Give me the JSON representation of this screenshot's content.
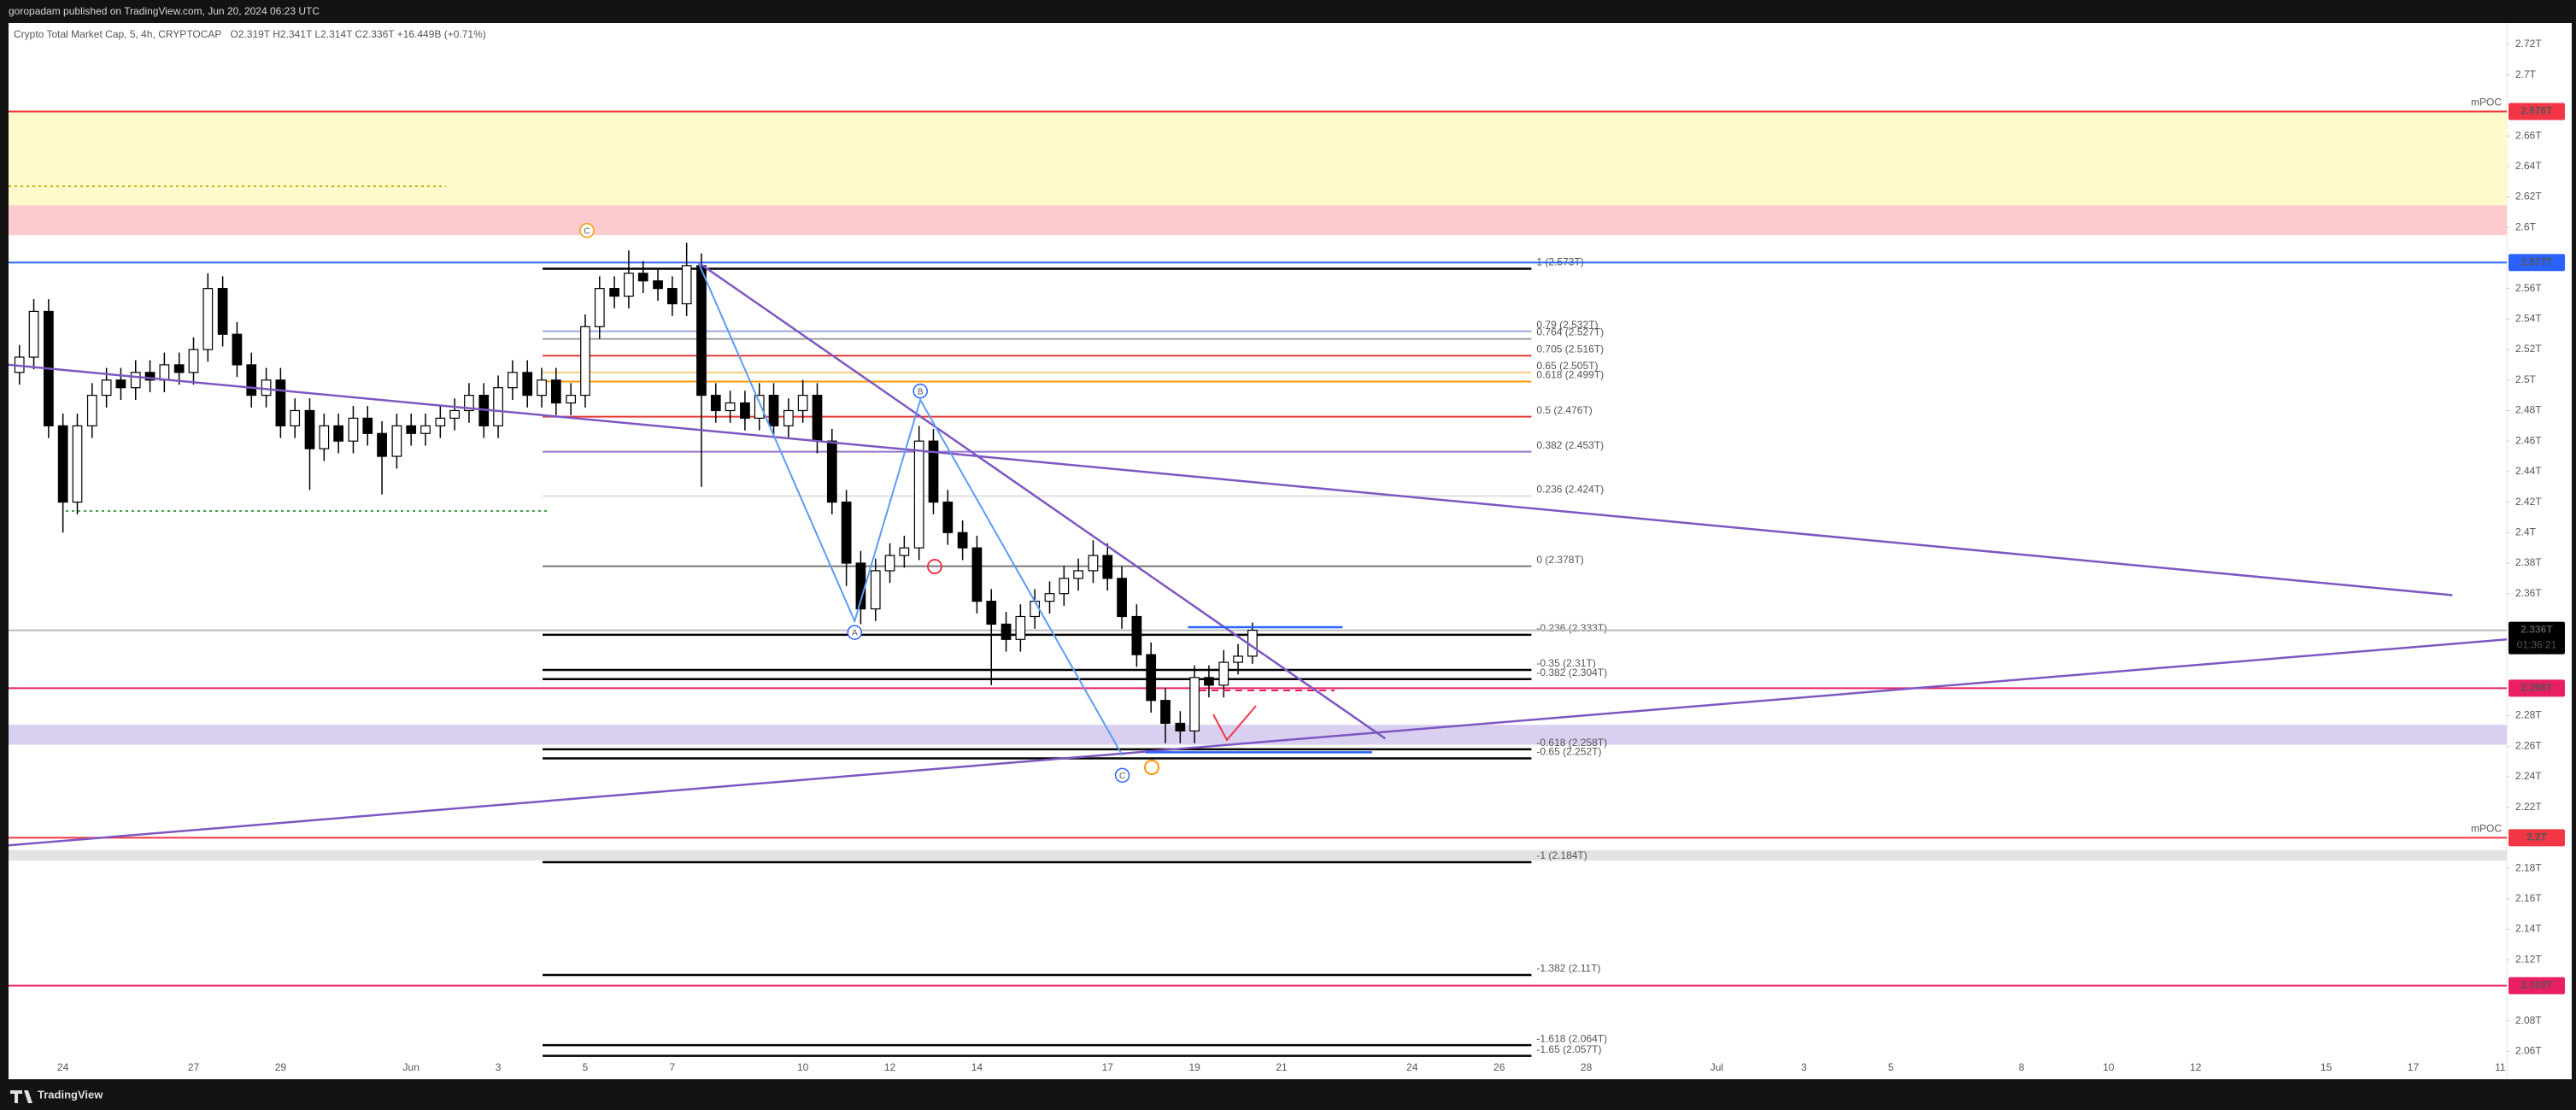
{
  "header": {
    "publisher": "goropadam published on TradingView.com, Jun 20, 2024 06:23 UTC"
  },
  "footer": {
    "brand": "TradingView"
  },
  "chart_data": {
    "type": "candlestick",
    "title": "Crypto Total Market Cap, 5, 4h, CRYPTOCAP",
    "subtitle": "O2.319T H2.341T L2.314T C2.336T +16.449B (+0.71%)",
    "x": [
      -1,
      -0.67,
      -0.33,
      0,
      0.33,
      0.67,
      1,
      1.33,
      1.67,
      2,
      2.33,
      2.67,
      3,
      3.33,
      3.67,
      4,
      4.33,
      4.67,
      5,
      5.33,
      5.67,
      6,
      6.33,
      6.67,
      7,
      7.33,
      7.67,
      8,
      8.33,
      8.67,
      9,
      9.33,
      9.67,
      10,
      10.33,
      10.67,
      11,
      11.33,
      11.67,
      12,
      12.33,
      12.67,
      13,
      13.33,
      13.67,
      14,
      14.33,
      14.67,
      15,
      15.33,
      15.67,
      16,
      16.33,
      16.67,
      17,
      17.33,
      17.67,
      18,
      18.33,
      18.67,
      19,
      19.33,
      19.67,
      20,
      20.33,
      20.67,
      21,
      21.33,
      21.67,
      22,
      22.33,
      22.67,
      23,
      23.33,
      23.67,
      24,
      24.33,
      24.67,
      25,
      25.33,
      25.67,
      26,
      26.33,
      26.67,
      27,
      27.33
    ],
    "open": [
      2.505,
      2.515,
      2.545,
      2.47,
      2.42,
      2.47,
      2.49,
      2.5,
      2.495,
      2.505,
      2.5,
      2.51,
      2.505,
      2.52,
      2.56,
      2.53,
      2.51,
      2.49,
      2.5,
      2.47,
      2.48,
      2.455,
      2.47,
      2.46,
      2.475,
      2.465,
      2.45,
      2.47,
      2.465,
      2.47,
      2.475,
      2.48,
      2.49,
      2.47,
      2.495,
      2.505,
      2.49,
      2.5,
      2.485,
      2.49,
      2.535,
      2.56,
      2.555,
      2.57,
      2.565,
      2.56,
      2.55,
      2.575,
      2.49,
      2.48,
      2.485,
      2.475,
      2.49,
      2.47,
      2.48,
      2.49,
      2.46,
      2.42,
      2.38,
      2.35,
      2.375,
      2.385,
      2.39,
      2.46,
      2.42,
      2.4,
      2.39,
      2.355,
      2.34,
      2.33,
      2.345,
      2.355,
      2.36,
      2.37,
      2.375,
      2.385,
      2.37,
      2.345,
      2.32,
      2.29,
      2.275,
      2.27,
      2.305,
      2.3,
      2.315,
      2.319
    ],
    "high": [
      2.523,
      2.553,
      2.553,
      2.478,
      2.478,
      2.498,
      2.508,
      2.508,
      2.513,
      2.513,
      2.518,
      2.518,
      2.528,
      2.57,
      2.568,
      2.538,
      2.518,
      2.508,
      2.508,
      2.488,
      2.488,
      2.478,
      2.478,
      2.483,
      2.483,
      2.473,
      2.478,
      2.478,
      2.478,
      2.483,
      2.488,
      2.498,
      2.498,
      2.503,
      2.513,
      2.513,
      2.508,
      2.508,
      2.498,
      2.543,
      2.568,
      2.568,
      2.585,
      2.578,
      2.573,
      2.568,
      2.59,
      2.583,
      2.498,
      2.493,
      2.493,
      2.498,
      2.498,
      2.488,
      2.5,
      2.498,
      2.468,
      2.428,
      2.388,
      2.383,
      2.393,
      2.398,
      2.47,
      2.468,
      2.428,
      2.408,
      2.398,
      2.363,
      2.348,
      2.353,
      2.363,
      2.368,
      2.378,
      2.383,
      2.395,
      2.393,
      2.378,
      2.353,
      2.328,
      2.298,
      2.283,
      2.313,
      2.313,
      2.323,
      2.327,
      2.341
    ],
    "low": [
      2.497,
      2.507,
      2.462,
      2.4,
      2.412,
      2.462,
      2.482,
      2.487,
      2.487,
      2.492,
      2.492,
      2.497,
      2.497,
      2.512,
      2.522,
      2.502,
      2.482,
      2.482,
      2.462,
      2.462,
      2.428,
      2.447,
      2.452,
      2.452,
      2.457,
      2.425,
      2.442,
      2.457,
      2.457,
      2.462,
      2.467,
      2.472,
      2.462,
      2.462,
      2.487,
      2.482,
      2.482,
      2.477,
      2.477,
      2.482,
      2.527,
      2.547,
      2.547,
      2.557,
      2.552,
      2.542,
      2.542,
      2.43,
      2.472,
      2.472,
      2.467,
      2.467,
      2.462,
      2.462,
      2.472,
      2.452,
      2.412,
      2.365,
      2.34,
      2.342,
      2.367,
      2.377,
      2.382,
      2.412,
      2.392,
      2.382,
      2.347,
      2.3,
      2.322,
      2.322,
      2.337,
      2.347,
      2.352,
      2.362,
      2.367,
      2.362,
      2.337,
      2.312,
      2.282,
      2.262,
      2.262,
      2.262,
      2.292,
      2.292,
      2.307,
      2.314
    ],
    "close": [
      2.515,
      2.545,
      2.47,
      2.42,
      2.47,
      2.49,
      2.5,
      2.495,
      2.505,
      2.5,
      2.51,
      2.505,
      2.52,
      2.56,
      2.53,
      2.51,
      2.49,
      2.5,
      2.47,
      2.48,
      2.455,
      2.47,
      2.46,
      2.475,
      2.465,
      2.45,
      2.47,
      2.465,
      2.47,
      2.475,
      2.48,
      2.49,
      2.47,
      2.495,
      2.505,
      2.49,
      2.5,
      2.485,
      2.49,
      2.535,
      2.56,
      2.555,
      2.57,
      2.565,
      2.56,
      2.55,
      2.575,
      2.49,
      2.48,
      2.485,
      2.475,
      2.49,
      2.47,
      2.48,
      2.49,
      2.46,
      2.42,
      2.38,
      2.35,
      2.375,
      2.385,
      2.39,
      2.46,
      2.42,
      2.4,
      2.39,
      2.355,
      2.34,
      2.33,
      2.345,
      2.355,
      2.36,
      2.37,
      2.375,
      2.385,
      2.37,
      2.345,
      2.32,
      2.29,
      2.275,
      2.27,
      2.305,
      2.3,
      2.315,
      2.319,
      2.336
    ],
    "up_color": "#ffffff",
    "down_color": "#000000",
    "xlim": [
      -1.25,
      56.15
    ],
    "xticks": [
      {
        "value": 0,
        "label": "24"
      },
      {
        "value": 3,
        "label": "27"
      },
      {
        "value": 5,
        "label": "29"
      },
      {
        "value": 8,
        "label": "Jun"
      },
      {
        "value": 10,
        "label": "3"
      },
      {
        "value": 12,
        "label": "5"
      },
      {
        "value": 14,
        "label": "7"
      },
      {
        "value": 17,
        "label": "10"
      },
      {
        "value": 19,
        "label": "12"
      },
      {
        "value": 21,
        "label": "14"
      },
      {
        "value": 24,
        "label": "17"
      },
      {
        "value": 26,
        "label": "19"
      },
      {
        "value": 28,
        "label": "21"
      },
      {
        "value": 31,
        "label": "24"
      },
      {
        "value": 33,
        "label": "26"
      },
      {
        "value": 35,
        "label": "28"
      },
      {
        "value": 38,
        "label": "Jul"
      },
      {
        "value": 40,
        "label": "3"
      },
      {
        "value": 42,
        "label": "5"
      },
      {
        "value": 45,
        "label": "8"
      },
      {
        "value": 47,
        "label": "10"
      },
      {
        "value": 49,
        "label": "12"
      },
      {
        "value": 52,
        "label": "15"
      },
      {
        "value": 54,
        "label": "17"
      },
      {
        "value": 56,
        "label": "11"
      }
    ],
    "ylim": [
      2.0417,
      2.734
    ],
    "yticks": [
      {
        "value": 2.72,
        "label": "2.72T"
      },
      {
        "value": 2.7,
        "label": "2.7T"
      },
      {
        "value": 2.66,
        "label": "2.66T"
      },
      {
        "value": 2.64,
        "label": "2.64T"
      },
      {
        "value": 2.62,
        "label": "2.62T"
      },
      {
        "value": 2.6,
        "label": "2.6T"
      },
      {
        "value": 2.56,
        "label": "2.56T"
      },
      {
        "value": 2.54,
        "label": "2.54T"
      },
      {
        "value": 2.52,
        "label": "2.52T"
      },
      {
        "value": 2.5,
        "label": "2.5T"
      },
      {
        "value": 2.48,
        "label": "2.48T"
      },
      {
        "value": 2.46,
        "label": "2.46T"
      },
      {
        "value": 2.44,
        "label": "2.44T"
      },
      {
        "value": 2.42,
        "label": "2.42T"
      },
      {
        "value": 2.4,
        "label": "2.4T"
      },
      {
        "value": 2.38,
        "label": "2.38T"
      },
      {
        "value": 2.36,
        "label": "2.36T"
      },
      {
        "value": 2.28,
        "label": "2.28T"
      },
      {
        "value": 2.26,
        "label": "2.26T"
      },
      {
        "value": 2.24,
        "label": "2.24T"
      },
      {
        "value": 2.22,
        "label": "2.22T"
      },
      {
        "value": 2.18,
        "label": "2.18T"
      },
      {
        "value": 2.16,
        "label": "2.16T"
      },
      {
        "value": 2.14,
        "label": "2.14T"
      },
      {
        "value": 2.12,
        "label": "2.12T"
      },
      {
        "value": 2.08,
        "label": "2.08T"
      },
      {
        "value": 2.06,
        "label": "2.06T"
      }
    ],
    "grid": false,
    "zones": [
      {
        "from": 2.6145,
        "to": 2.677,
        "color": "#fff9cc"
      },
      {
        "from": 2.595,
        "to": 2.6145,
        "color": "#fccbcd"
      },
      {
        "from": 2.261,
        "to": 2.274,
        "color": "#d9cff0"
      },
      {
        "from": 2.185,
        "to": 2.192,
        "color": "#e3e3e3"
      }
    ],
    "price_labels": [
      {
        "value": 2.676,
        "label": "2.676T",
        "color": "#f23645"
      },
      {
        "value": 2.577,
        "label": "2.577T",
        "color": "#2962ff"
      },
      {
        "value": 2.336,
        "label": "2.336T",
        "color": "#000000",
        "countdown": "01:36:21"
      },
      {
        "value": 2.298,
        "label": "2.298T",
        "color": "#e91e63"
      },
      {
        "value": 2.2,
        "label": "2.2T",
        "color": "#f23645"
      },
      {
        "value": 2.103,
        "label": "2.103T",
        "color": "#e91e63"
      }
    ],
    "mpoc": [
      {
        "label": "mPOC",
        "value": 2.676
      },
      {
        "label": "mPOC",
        "value": 2.2
      }
    ],
    "fib": {
      "x": [
        11.02,
        33.74
      ],
      "levels": [
        {
          "label": "1 (2.573T)",
          "value": 2.573,
          "color": "#000000"
        },
        {
          "label": "0.79 (2.532T)",
          "value": 2.532,
          "color": "#9fa8da"
        },
        {
          "label": "0.764 (2.527T)",
          "value": 2.527,
          "color": "#9e9e9e"
        },
        {
          "label": "0.705 (2.516T)",
          "value": 2.516,
          "color": "#e53935"
        },
        {
          "label": "0.65 (2.505T)",
          "value": 2.505,
          "color": "#ffcc80"
        },
        {
          "label": "0.618 (2.499T)",
          "value": 2.499,
          "color": "#ff9800"
        },
        {
          "label": "0.5 (2.476T)",
          "value": 2.476,
          "color": "#e53935"
        },
        {
          "label": "0.382 (2.453T)",
          "value": 2.453,
          "color": "#9575cd"
        },
        {
          "label": "0.236 (2.424T)",
          "value": 2.424,
          "color": "#e0e0e0"
        },
        {
          "label": "0 (2.378T)",
          "value": 2.378,
          "color": "#787878"
        },
        {
          "label": "-0.236 (2.333T)",
          "value": 2.333,
          "color": "#000000"
        },
        {
          "label": "-0.35 (2.31T)",
          "value": 2.31,
          "color": "#000000"
        },
        {
          "label": "-0.382 (2.304T)",
          "value": 2.304,
          "color": "#000000"
        },
        {
          "label": "-0.618 (2.258T)",
          "value": 2.258,
          "color": "#000000"
        },
        {
          "label": "-0.65 (2.252T)",
          "value": 2.252,
          "color": "#000000"
        },
        {
          "label": "-1 (2.184T)",
          "value": 2.184,
          "color": "#000000"
        },
        {
          "label": "-1.382 (2.11T)",
          "value": 2.11,
          "color": "#000000"
        },
        {
          "label": "-1.618 (2.064T)",
          "value": 2.064,
          "color": "#000000"
        },
        {
          "label": "-1.65 (2.057T)",
          "value": 2.057,
          "color": "#000000"
        }
      ]
    },
    "trendlines": [
      {
        "x": [
          -1.25,
          54.9
        ],
        "y": [
          2.51,
          2.359
        ],
        "color": "#7e57c2"
      },
      {
        "x": [
          -1.25,
          56.15
        ],
        "y": [
          2.195,
          2.33
        ],
        "color": "#7e57c2"
      },
      {
        "x": [
          14.6,
          30.38
        ],
        "y": [
          2.577,
          2.265
        ],
        "color": "#7e57c2"
      },
      {
        "x": [
          25.85,
          29.4
        ],
        "y": [
          2.338,
          2.338
        ],
        "color": "#2962ff"
      },
      {
        "x": [
          24.87,
          30.08
        ],
        "y": [
          2.256,
          2.256
        ],
        "color": "#2962ff"
      }
    ],
    "wave": {
      "x": [
        14.6,
        18.19,
        19.7,
        24.34
      ],
      "y": [
        2.577,
        2.342,
        2.487,
        2.254
      ],
      "color": "#5b9cf6"
    },
    "wave_labels": [
      {
        "text": "C",
        "x": 12.04,
        "y": 2.598,
        "color": "#ff9800"
      },
      {
        "text": "A",
        "x": 18.19,
        "y": 2.3346,
        "color": "#2962ff"
      },
      {
        "text": "B",
        "x": 19.7,
        "y": 2.4928,
        "color": "#2962ff"
      },
      {
        "text": "C",
        "x": 24.34,
        "y": 2.2409,
        "color": "#2962ff"
      }
    ]
  }
}
